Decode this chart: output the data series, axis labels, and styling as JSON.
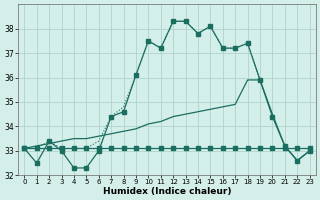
{
  "xlabel": "Humidex (Indice chaleur)",
  "bg_color": "#d4eeea",
  "grid_color": "#aed4cc",
  "line_color": "#1a6e60",
  "xlim": [
    -0.5,
    23.5
  ],
  "ylim": [
    32,
    39
  ],
  "yticks": [
    32,
    33,
    34,
    35,
    36,
    37,
    38
  ],
  "xticks": [
    0,
    1,
    2,
    3,
    4,
    5,
    6,
    7,
    8,
    9,
    10,
    11,
    12,
    13,
    14,
    15,
    16,
    17,
    18,
    19,
    20,
    21,
    22,
    23
  ],
  "curve_main_x": [
    0,
    1,
    2,
    3,
    4,
    5,
    6,
    7,
    8,
    9,
    10,
    11,
    12,
    13,
    14,
    15,
    16,
    17,
    18,
    19,
    20,
    21,
    22,
    23
  ],
  "curve_main_y": [
    33.1,
    32.5,
    33.4,
    33.0,
    32.3,
    32.3,
    33.0,
    34.4,
    34.6,
    36.1,
    37.5,
    37.2,
    38.3,
    38.3,
    37.8,
    38.1,
    37.2,
    37.2,
    37.4,
    35.9,
    34.4,
    33.2,
    32.6,
    33.0
  ],
  "curve_flat_x": [
    0,
    1,
    2,
    3,
    4,
    5,
    6,
    7,
    8,
    9,
    10,
    11,
    12,
    13,
    14,
    15,
    16,
    17,
    18,
    19,
    20,
    21,
    22,
    23
  ],
  "curve_flat_y": [
    33.1,
    33.1,
    33.1,
    33.1,
    33.1,
    33.1,
    33.1,
    33.1,
    33.1,
    33.1,
    33.1,
    33.1,
    33.1,
    33.1,
    33.1,
    33.1,
    33.1,
    33.1,
    33.1,
    33.1,
    33.1,
    33.1,
    33.1,
    33.1
  ],
  "curve_rise1_x": [
    0,
    1,
    2,
    3,
    4,
    5,
    6,
    7,
    8,
    9,
    10,
    11,
    12,
    13,
    14,
    15,
    16,
    17,
    18,
    19,
    20,
    21,
    22,
    23
  ],
  "curve_rise1_y": [
    33.1,
    33.2,
    33.3,
    33.4,
    33.5,
    33.5,
    33.6,
    33.7,
    33.8,
    33.9,
    34.1,
    34.2,
    34.4,
    34.5,
    34.6,
    34.7,
    34.8,
    34.9,
    35.9,
    35.9,
    34.5,
    33.2,
    32.6,
    33.0
  ],
  "curve_dotted_x": [
    0,
    1,
    2,
    3,
    4,
    5,
    6,
    7,
    8,
    9,
    10,
    11,
    12,
    13,
    14,
    15,
    16,
    17,
    18,
    19
  ],
  "curve_dotted_y": [
    33.1,
    33.1,
    33.4,
    33.1,
    33.1,
    33.1,
    33.4,
    34.4,
    34.8,
    36.1,
    37.5,
    37.2,
    38.3,
    38.3,
    37.8,
    38.1,
    37.2,
    37.2,
    37.4,
    35.9
  ]
}
